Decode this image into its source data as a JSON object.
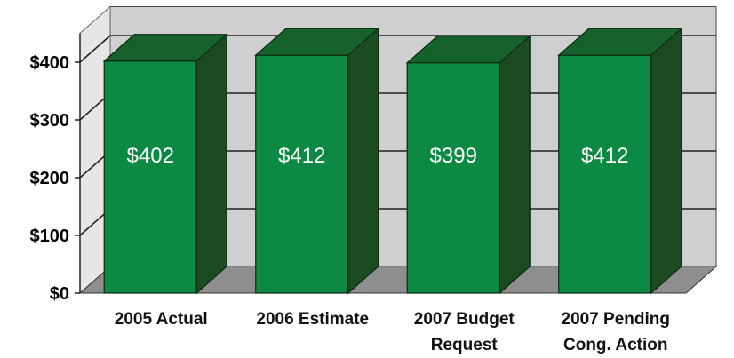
{
  "chart_data": {
    "type": "bar",
    "title": "",
    "xlabel": "",
    "ylabel": "",
    "categories": [
      [
        "2005 Actual"
      ],
      [
        "2006 Estimate"
      ],
      [
        "2007 Budget",
        "Request"
      ],
      [
        "2007 Pending",
        "Cong. Action"
      ]
    ],
    "series": [
      {
        "values": [
          402,
          412,
          399,
          412
        ],
        "data_labels": [
          "$402",
          "$412",
          "$399",
          "$412"
        ]
      }
    ],
    "ylim": [
      0,
      450
    ],
    "yticks": [
      0,
      100,
      200,
      300,
      400
    ],
    "ytick_labels": [
      "$0",
      "$100",
      "$200",
      "$300",
      "$400"
    ],
    "grid": true,
    "legend": "none",
    "style": "3d",
    "colors": {
      "bar_front": "#0c8a43",
      "bar_side": "#1c4a23",
      "bar_top": "#17622c",
      "back_wall": "#cfcfcf",
      "floor": "#8e8e8e",
      "gridline": "#222222"
    }
  }
}
